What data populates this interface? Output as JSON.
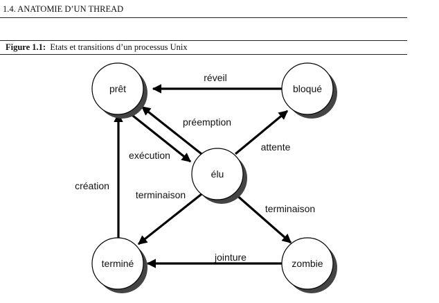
{
  "header": {
    "section_title": "1.4.  ANATOMIE D’UN THREAD"
  },
  "figure": {
    "label": "Figure 1.1:",
    "caption": "Etats et transitions d’un processus Unix"
  },
  "diagram": {
    "states": {
      "pret": "prêt",
      "bloque": "bloqué",
      "elu": "élu",
      "termine": "terminé",
      "zombie": "zombie"
    },
    "transitions": {
      "reveil": "réveil",
      "preemption": "préemption",
      "execution": "exécution",
      "attente": "attente",
      "creation": "création",
      "terminaison_left": "terminaison",
      "terminaison_right": "terminaison",
      "jointure": "jointure"
    }
  }
}
